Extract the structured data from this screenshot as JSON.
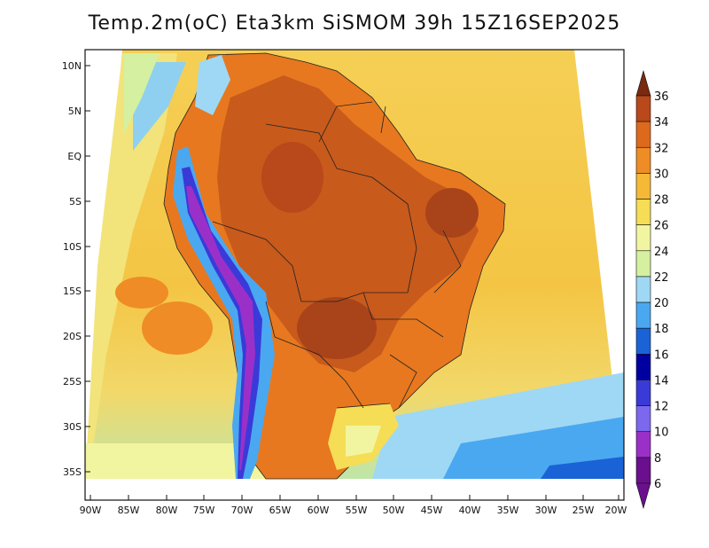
{
  "title": "Temp.2m(oC) Eta3km SiSMOM 39h 15Z16SEP2025",
  "map": {
    "lat_labels": [
      "10N",
      "5N",
      "EQ",
      "5S",
      "10S",
      "15S",
      "20S",
      "25S",
      "30S",
      "35S"
    ],
    "lon_labels": [
      "90W",
      "85W",
      "80W",
      "75W",
      "70W",
      "65W",
      "60W",
      "55W",
      "50W",
      "45W",
      "40W",
      "35W",
      "30W",
      "25W",
      "20W"
    ]
  },
  "colorbar": {
    "levels": [
      6,
      8,
      10,
      12,
      14,
      16,
      18,
      20,
      22,
      24,
      26,
      28,
      30,
      32,
      34,
      36
    ],
    "colors": [
      "#6a0f8e",
      "#9b30c8",
      "#7b68ee",
      "#3a3ad8",
      "#0000a0",
      "#1a63d6",
      "#4aa8f0",
      "#9ed8f5",
      "#d4f0a0",
      "#f2f5a0",
      "#f5dd55",
      "#f5b935",
      "#ef8c25",
      "#dd6a1c",
      "#b9481a",
      "#7a2a10"
    ],
    "colors_names": [
      "purple",
      "violet",
      "slateblue",
      "blue",
      "navy",
      "royalblue",
      "skyblue",
      "lightblue",
      "lightgreen",
      "paleyellow",
      "yellow",
      "gold",
      "orange",
      "darkorange",
      "brown",
      "darkbrown"
    ]
  },
  "legend_colors": {
    "ocean_mid": "#f5c840",
    "land_hot": "#c85a1c",
    "coast_cool": "#8fd0f0"
  }
}
